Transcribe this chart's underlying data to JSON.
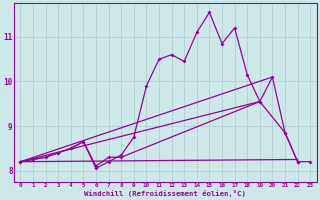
{
  "xlabel": "Windchill (Refroidissement éolien,°C)",
  "bg_color": "#cce8e8",
  "grid_color": "#aacccc",
  "line_color": "#990099",
  "x": [
    0,
    1,
    2,
    3,
    4,
    5,
    6,
    7,
    8,
    9,
    10,
    11,
    12,
    13,
    14,
    15,
    16,
    17,
    18,
    19,
    20,
    21,
    22,
    23
  ],
  "series1": [
    8.2,
    8.25,
    8.3,
    8.4,
    8.5,
    8.65,
    8.05,
    8.2,
    8.35,
    8.75,
    9.9,
    10.5,
    10.6,
    10.45,
    11.1,
    11.55,
    10.85,
    11.2,
    10.15,
    9.55,
    10.1,
    8.85,
    8.2,
    8.2
  ],
  "series2_x": [
    0,
    1,
    2,
    3,
    4,
    5,
    6,
    7,
    8,
    19,
    21,
    22
  ],
  "series2_y": [
    8.2,
    8.25,
    8.3,
    8.4,
    8.5,
    8.65,
    8.1,
    8.3,
    8.3,
    9.55,
    8.85,
    8.2
  ],
  "series3_x": [
    0,
    22
  ],
  "series3_y": [
    8.2,
    8.25
  ],
  "series4_x": [
    0,
    19
  ],
  "series4_y": [
    8.2,
    9.55
  ],
  "series5_x": [
    0,
    20
  ],
  "series5_y": [
    8.2,
    10.1
  ],
  "xlim": [
    -0.5,
    23.5
  ],
  "ylim": [
    7.75,
    11.75
  ],
  "yticks": [
    8,
    9,
    10,
    11
  ],
  "xticks": [
    0,
    1,
    2,
    3,
    4,
    5,
    6,
    7,
    8,
    9,
    10,
    11,
    12,
    13,
    14,
    15,
    16,
    17,
    18,
    19,
    20,
    21,
    22,
    23
  ]
}
